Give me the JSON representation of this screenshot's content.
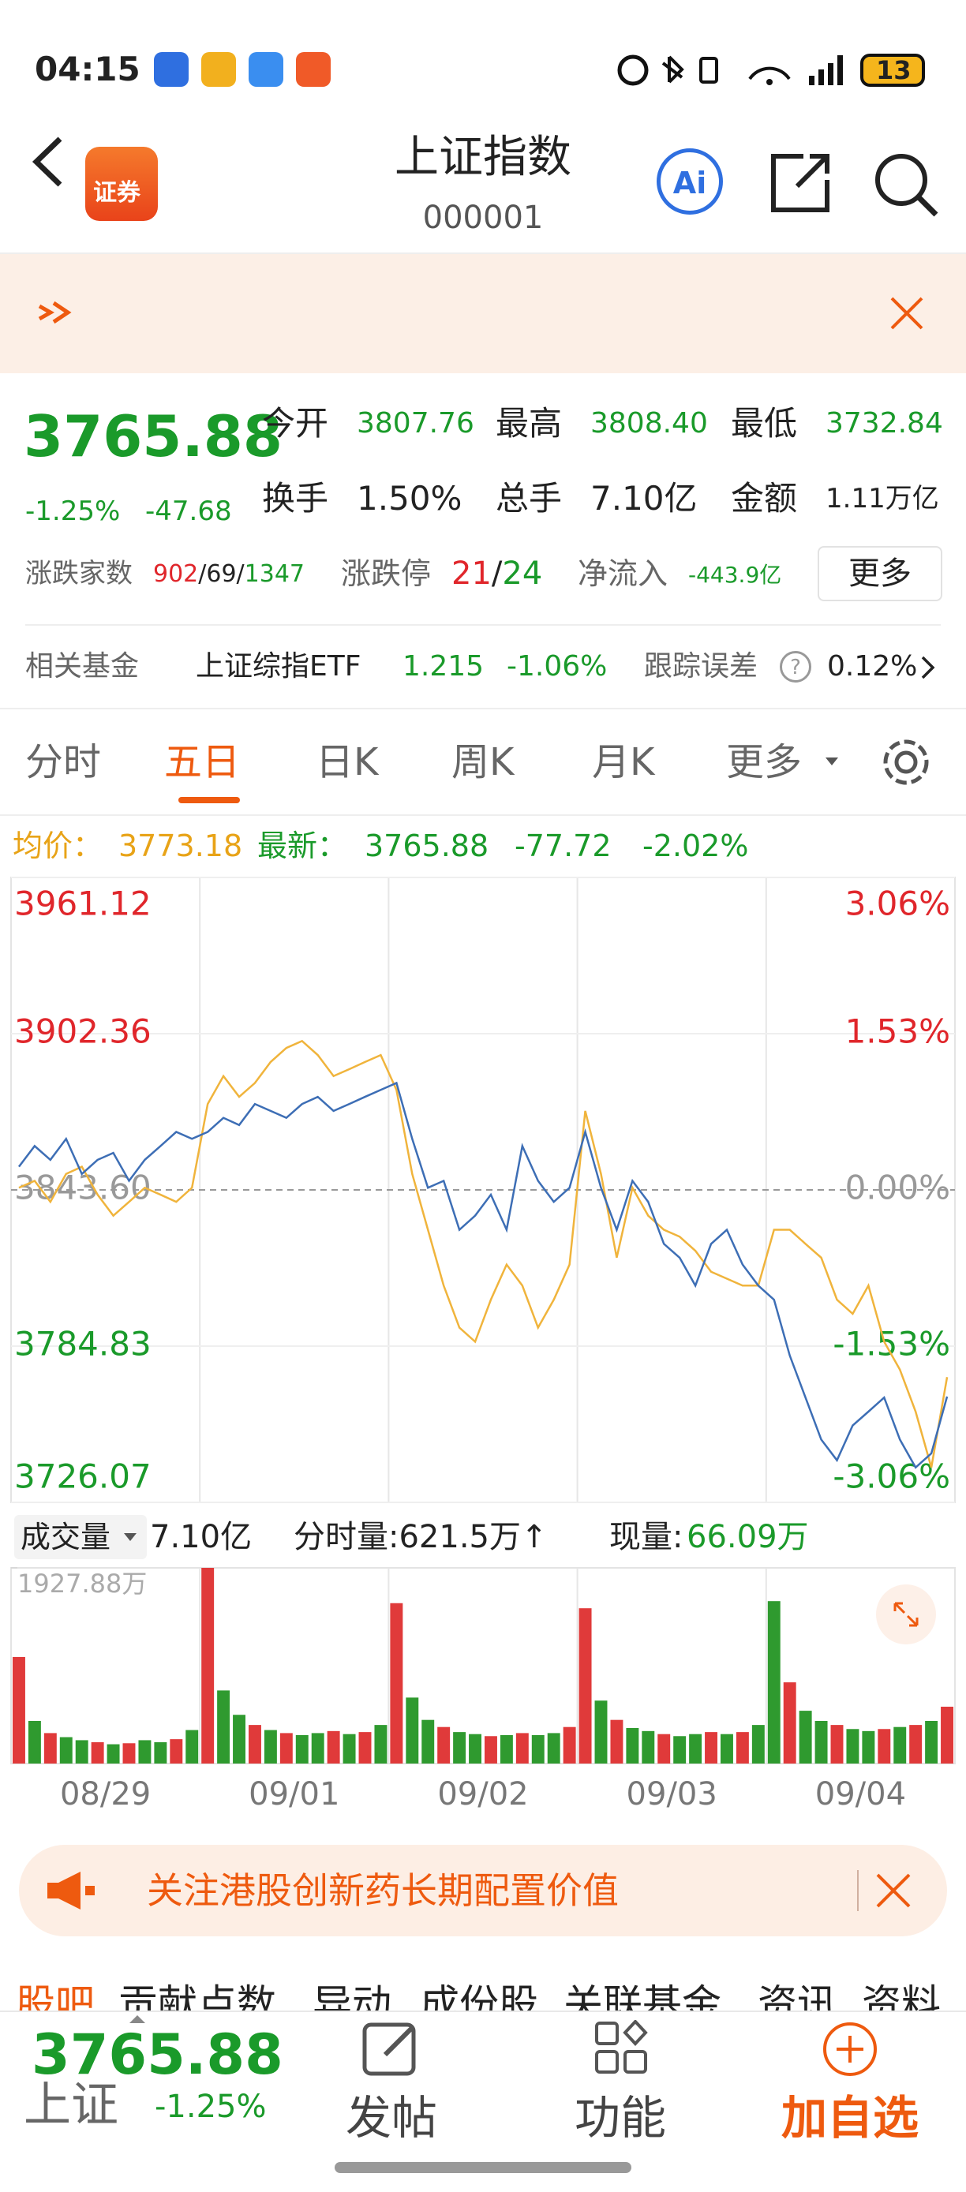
{
  "status_bar": {
    "time": "04:15",
    "battery": "13"
  },
  "header": {
    "logo_text": "证券",
    "title": "上证指数",
    "code": "000001",
    "ai_button": "Ai"
  },
  "quote": {
    "price": "3765.88",
    "change_pct": "-1.25%",
    "change": "-47.68",
    "stats": [
      {
        "label": "今开",
        "value": "3807.76"
      },
      {
        "label": "最高",
        "value": "3808.40"
      },
      {
        "label": "最低",
        "value": "3732.84"
      },
      {
        "label": "换手",
        "value": "1.50%"
      },
      {
        "label": "总手",
        "value": "7.10亿"
      },
      {
        "label": "金额",
        "value": "1.11万亿"
      }
    ],
    "breadth": {
      "label": "涨跌家数",
      "up": "902",
      "flat": "/69/",
      "down": "1347"
    },
    "limit": {
      "label": "涨跌停",
      "up": "21",
      "sep": "/",
      "down": "24"
    },
    "net_inflow": {
      "label": "净流入",
      "value": "-443.9亿"
    },
    "more_button": "更多"
  },
  "fund": {
    "label": "相关基金",
    "name": "上证综指ETF",
    "price": "1.215",
    "change": "-1.06%",
    "tracking_label": "跟踪误差",
    "help": "?",
    "tracking_error": "0.12%"
  },
  "tabs": [
    "分时",
    "五日",
    "日K",
    "周K",
    "月K",
    "更多"
  ],
  "legend": {
    "avg_label": "均价：",
    "avg": "3773.18",
    "last_label": "最新：",
    "last": "3765.88",
    "change": "-77.72",
    "change_pct": "-2.02%"
  },
  "chart_data": {
    "type": "line",
    "ylim": [
      3726.07,
      3961.12
    ],
    "yticks": [
      3961.12,
      3902.36,
      {
        "value": 3843.6,
        "label": "3843.60"
      },
      3784.83,
      3726.07
    ],
    "y2lim": [
      -3.06,
      3.06
    ],
    "y2ticks": [
      {
        "value": 3.06,
        "label": "3.06%"
      },
      {
        "value": 1.53,
        "label": "1.53%"
      },
      {
        "value": 0,
        "label": "0.00%"
      },
      {
        "value": -1.53,
        "label": "-1.53%"
      },
      {
        "value": -3.06,
        "label": "-3.06%"
      }
    ],
    "grid": true,
    "series": [
      {
        "color": "#3d6eb5",
        "values": [
          3852.3,
          3860.1,
          3854.9,
          3862.8,
          3849.6,
          3854.9,
          3857.5,
          3847.0,
          3854.9,
          3860.1,
          3865.4,
          3862.8,
          3865.4,
          3870.7,
          3868.0,
          3875.9,
          3873.3,
          3870.7,
          3875.9,
          3878.6,
          3873.3,
          3875.9,
          3878.6,
          3881.2,
          3883.8,
          3862.8,
          3844.4,
          3847.0,
          3828.6,
          3833.9,
          3841.8,
          3828.6,
          3860.1,
          3847.0,
          3839.1,
          3844.4,
          3865.4,
          3844.4,
          3828.6,
          3847.0,
          3839.1,
          3823.3,
          3818.1,
          3807.6,
          3823.3,
          3828.6,
          3815.5,
          3807.6,
          3802.3,
          3781.3,
          3765.5,
          3749.7,
          3741.9,
          3755.0,
          3760.2,
          3765.5,
          3749.7,
          3739.2,
          3744.5,
          3765.88
        ]
      },
      {
        "color": "#f0b43c",
        "values": [
          3844.4,
          3847.0,
          3839.1,
          3849.6,
          3852.3,
          3841.8,
          3833.9,
          3839.1,
          3844.4,
          3841.8,
          3839.1,
          3844.4,
          3875.9,
          3886.4,
          3878.6,
          3883.8,
          3891.7,
          3897.0,
          3899.6,
          3894.3,
          3886.4,
          3889.0,
          3891.7,
          3894.3,
          3881.2,
          3849.6,
          3828.6,
          3807.6,
          3791.8,
          3786.5,
          3802.3,
          3815.5,
          3807.6,
          3791.8,
          3802.3,
          3815.5,
          3873.3,
          3849.6,
          3818.1,
          3844.4,
          3833.9,
          3828.6,
          3826.0,
          3820.7,
          3812.8,
          3810.2,
          3807.6,
          3807.6,
          3828.6,
          3828.6,
          3823.3,
          3818.1,
          3802.3,
          3797.0,
          3807.6,
          3786.5,
          3776.0,
          3760.2,
          3739.2,
          3773.18
        ]
      }
    ],
    "days": [
      "08/29",
      "09/01",
      "09/02",
      "09/03",
      "09/04"
    ]
  },
  "volume_chart": {
    "type": "bar",
    "header": {
      "label": "成交量",
      "total": "7.10亿",
      "minute_volume": "分时量:621.5万↑",
      "current_label": "现量:",
      "current": "66.09万"
    },
    "ylim": [
      0,
      1927.88
    ],
    "yticks": [
      {
        "value": 1927.88,
        "label": "1927.88万"
      }
    ],
    "values": [
      1050,
      420,
      300,
      260,
      230,
      210,
      190,
      200,
      230,
      210,
      240,
      330,
      1927.88,
      720,
      480,
      380,
      330,
      300,
      280,
      300,
      320,
      290,
      310,
      380,
      1580,
      650,
      430,
      360,
      310,
      290,
      270,
      280,
      300,
      280,
      300,
      360,
      1530,
      620,
      430,
      350,
      320,
      290,
      270,
      290,
      310,
      290,
      310,
      380,
      1600,
      800,
      520,
      420,
      380,
      340,
      320,
      340,
      360,
      380,
      420,
      560
    ],
    "colors": [
      "#e03a3a",
      "#2f9a2f",
      "#e03a3a",
      "#2f9a2f",
      "#2f9a2f",
      "#e03a3a",
      "#2f9a2f",
      "#e03a3a",
      "#2f9a2f",
      "#2f9a2f",
      "#e03a3a",
      "#2f9a2f",
      "#e03a3a",
      "#2f9a2f",
      "#2f9a2f",
      "#e03a3a",
      "#2f9a2f",
      "#e03a3a",
      "#2f9a2f",
      "#2f9a2f",
      "#e03a3a",
      "#2f9a2f",
      "#e03a3a",
      "#2f9a2f",
      "#e03a3a",
      "#2f9a2f",
      "#2f9a2f",
      "#e03a3a",
      "#2f9a2f",
      "#2f9a2f",
      "#e03a3a",
      "#2f9a2f",
      "#e03a3a",
      "#2f9a2f",
      "#2f9a2f",
      "#e03a3a",
      "#e03a3a",
      "#2f9a2f",
      "#e03a3a",
      "#2f9a2f",
      "#2f9a2f",
      "#e03a3a",
      "#2f9a2f",
      "#2f9a2f",
      "#e03a3a",
      "#2f9a2f",
      "#e03a3a",
      "#2f9a2f",
      "#2f9a2f",
      "#e03a3a",
      "#2f9a2f",
      "#2f9a2f",
      "#e03a3a",
      "#2f9a2f",
      "#2f9a2f",
      "#e03a3a",
      "#2f9a2f",
      "#e03a3a",
      "#2f9a2f",
      "#e03a3a"
    ]
  },
  "promo": {
    "text": "关注港股创新药长期配置价值"
  },
  "sub_tabs": [
    "股吧",
    "贡献点数",
    "异动",
    "成份股",
    "关联基金",
    "资讯",
    "资料"
  ],
  "bottom_bar": {
    "price": "3765.88",
    "name": "上证",
    "change_pct": "-1.25%",
    "actions": [
      "发帖",
      "功能",
      "加自选"
    ]
  }
}
